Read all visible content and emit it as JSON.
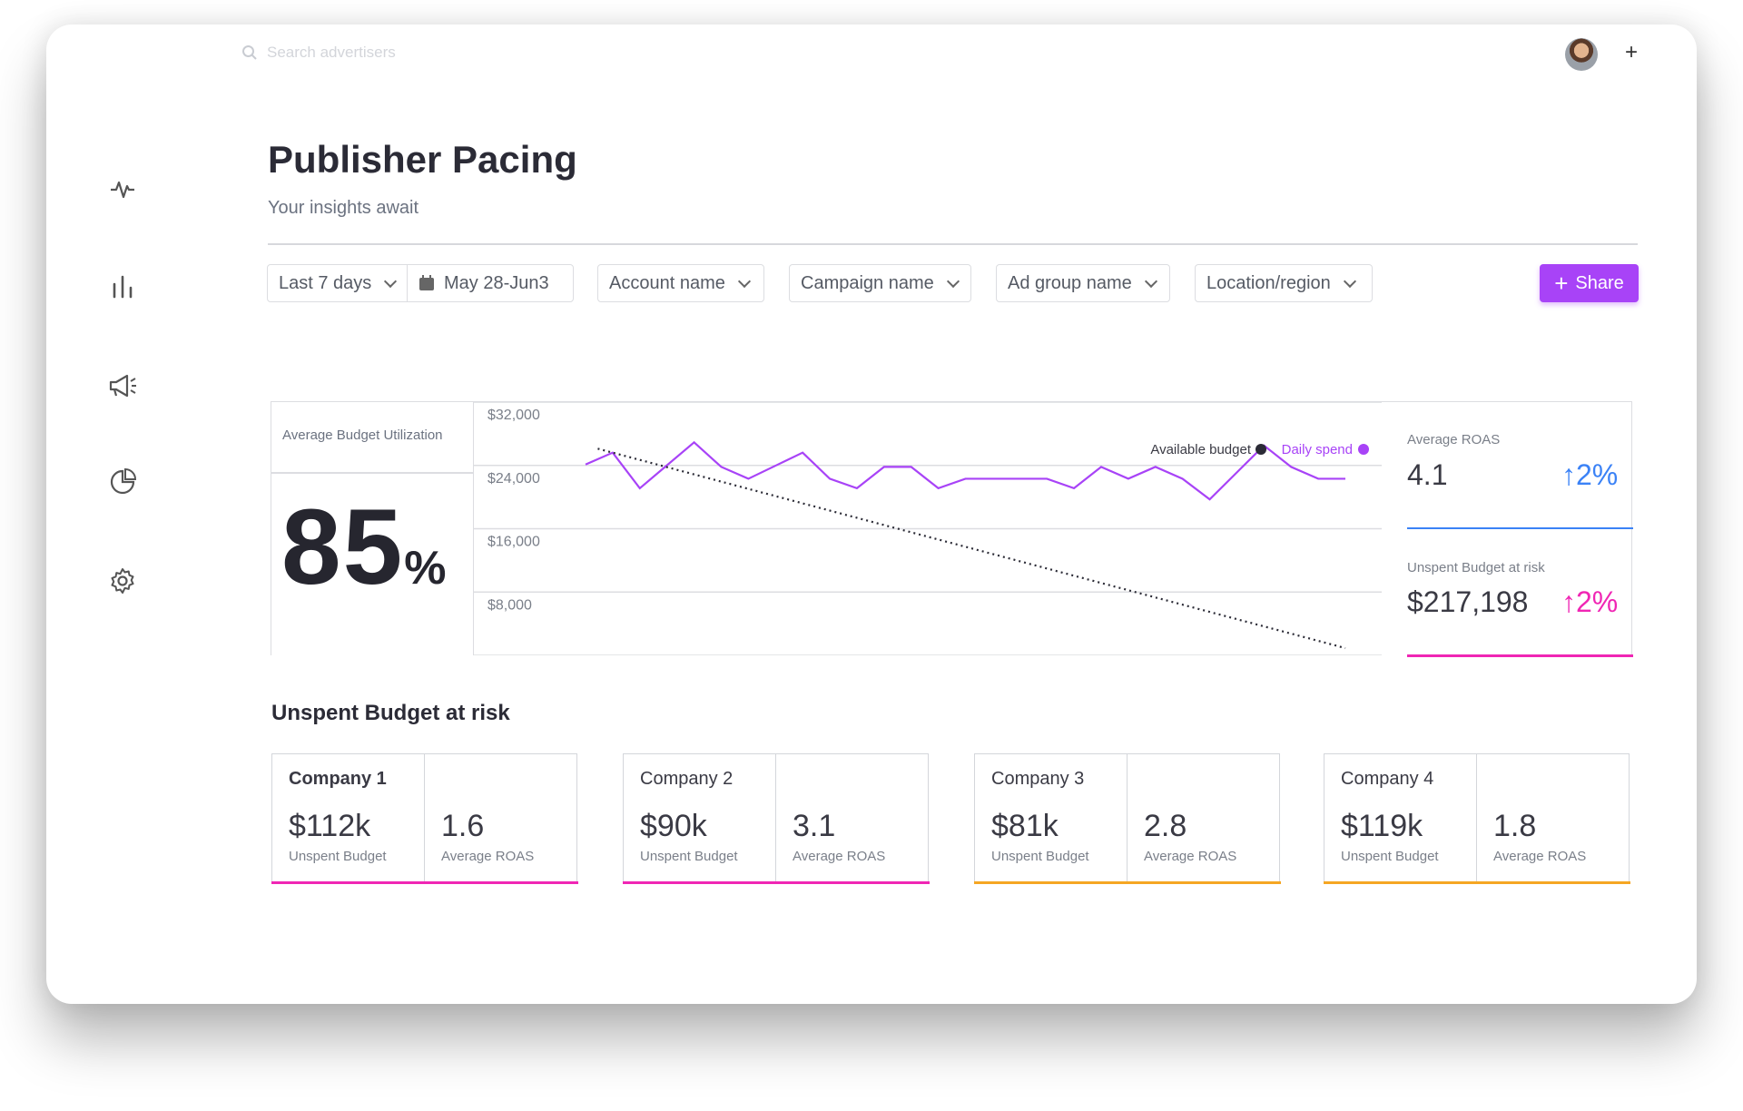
{
  "search": {
    "placeholder": "Search advertisers",
    "icon": "search-icon"
  },
  "header": {
    "title": "Publisher Pacing",
    "subtitle": "Your insights await"
  },
  "sidebar": {
    "items": [
      {
        "icon": "activity-icon"
      },
      {
        "icon": "bar-chart-icon"
      },
      {
        "icon": "megaphone-icon"
      },
      {
        "icon": "pie-chart-icon"
      },
      {
        "icon": "gear-icon"
      }
    ]
  },
  "filters": {
    "range": "Last 7 days",
    "date": "May 28-Jun3",
    "account": "Account name",
    "campaign": "Campaign name",
    "adgroup": "Ad group name",
    "location": "Location/region",
    "share": "Share"
  },
  "colors": {
    "accent": "#a843f7",
    "blue": "#3b82f6",
    "pink": "#f026b4",
    "orange": "#f5a623",
    "dark": "#2b2b36"
  },
  "utilization": {
    "label": "Average Budget Utilization",
    "value": "85",
    "unit": "%"
  },
  "chart_data": {
    "type": "line",
    "yticks": [
      "$32,000",
      "$24,000",
      "$16,000",
      "$8,000"
    ],
    "ylim": [
      0,
      32000
    ],
    "grid": true,
    "legend": {
      "position": "top-right",
      "entries": [
        "Available budget",
        "Daily spend"
      ]
    },
    "series": [
      {
        "name": "Daily spend",
        "color": "#a843f7",
        "values": [
          24000,
          25500,
          21000,
          23900,
          26800,
          23700,
          22200,
          23850,
          25500,
          22200,
          21000,
          23700,
          23700,
          21000,
          22200,
          22200,
          22200,
          22200,
          21000,
          23700,
          22200,
          23700,
          22200,
          19600,
          23000,
          26400,
          23700,
          22200,
          22200
        ]
      },
      {
        "name": "Available budget",
        "color": "#2b2b36",
        "style": "dotted",
        "start": 26000,
        "end": 800
      }
    ]
  },
  "metrics": {
    "roas": {
      "label": "Average ROAS",
      "value": "4.1",
      "delta": "↑2%"
    },
    "unspent": {
      "label": "Unspent Budget at risk",
      "value": "$217,198",
      "delta": "↑2%"
    }
  },
  "section": {
    "title": "Unspent Budget at risk"
  },
  "companies": [
    {
      "name": "Company 1",
      "budget": "$112k",
      "budget_label": "Unspent Budget",
      "roas": "1.6",
      "roas_label": "Average ROAS",
      "status": "pink"
    },
    {
      "name": "Company 2",
      "budget": "$90k",
      "budget_label": "Unspent Budget",
      "roas": "3.1",
      "roas_label": "Average ROAS",
      "status": "pink"
    },
    {
      "name": "Company 3",
      "budget": "$81k",
      "budget_label": "Unspent Budget",
      "roas": "2.8",
      "roas_label": "Average ROAS",
      "status": "orange"
    },
    {
      "name": "Company 4",
      "budget": "$119k",
      "budget_label": "Unspent Budget",
      "roas": "1.8",
      "roas_label": "Average ROAS",
      "status": "orange"
    }
  ]
}
